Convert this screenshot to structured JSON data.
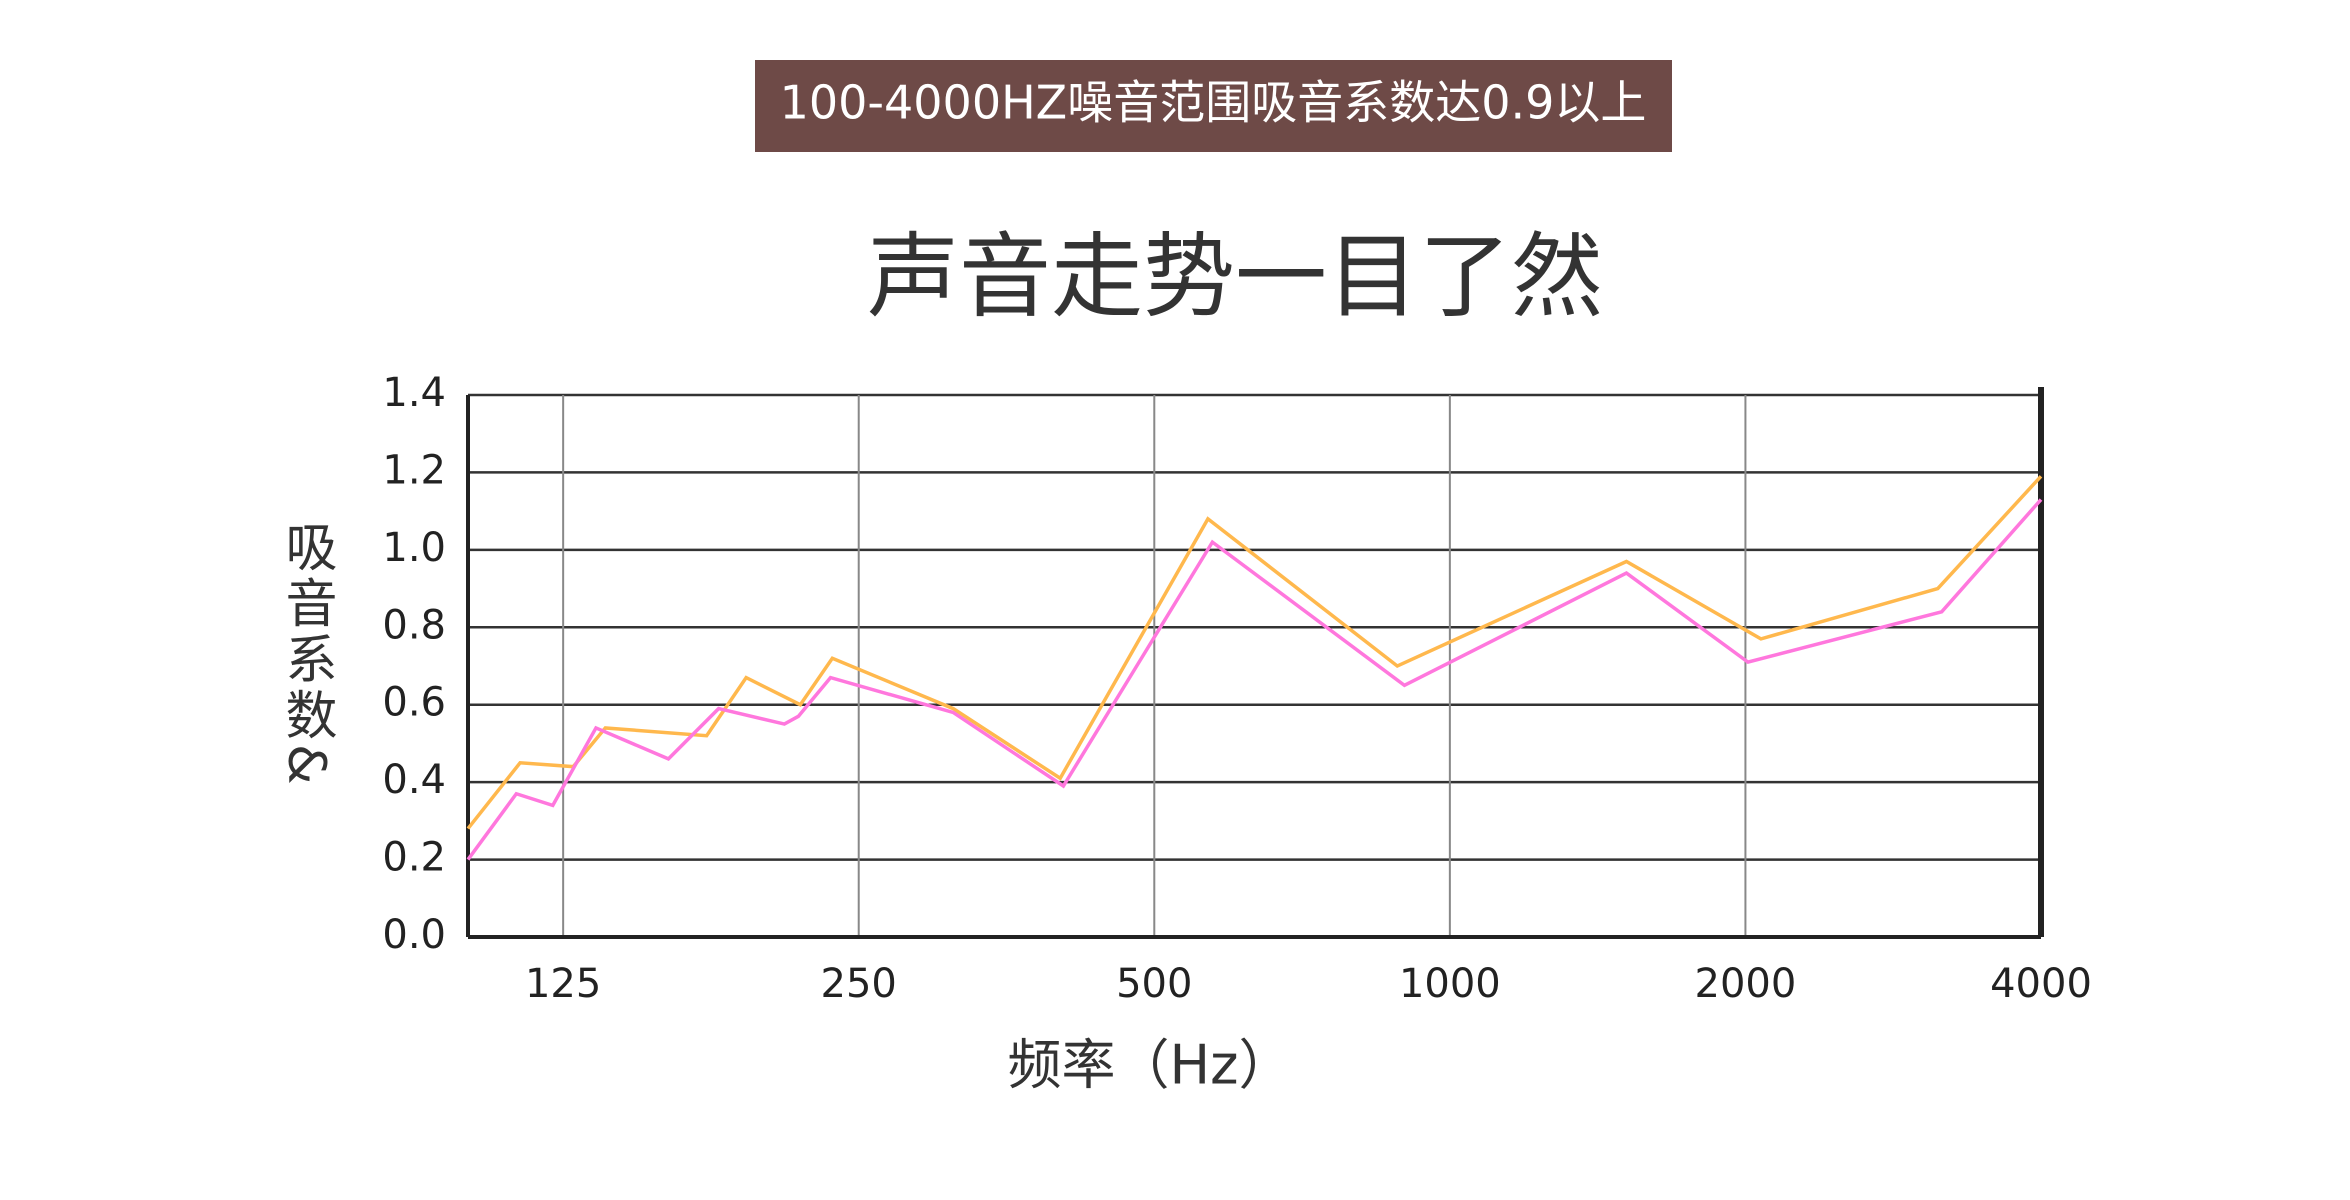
{
  "header": {
    "banner": "100-4000HZ噪音范围吸音系数达0.9以上"
  },
  "chart_data": {
    "type": "line",
    "title": "声音走势一目了然",
    "x_label": "频率（Hz）",
    "y_label": "吸音系数&",
    "xscale": "log",
    "xlim": [
      100,
      4000
    ],
    "xticks": [
      125,
      250,
      500,
      1000,
      2000,
      4000
    ],
    "ylim": [
      0,
      1.4
    ],
    "yticks": [
      {
        "value": 0,
        "label": "0.0"
      },
      0.2,
      0.4,
      0.6,
      0.8,
      {
        "value": 1,
        "label": "1.0"
      },
      1.2,
      1.4
    ],
    "grid": true,
    "series": [
      {
        "color": "#ffb84d",
        "x": [
          100,
          113,
          128,
          138,
          175,
          192,
          218,
          235,
          312,
          401,
          567,
          884,
          1513,
          2074,
          3140,
          4000
        ],
        "values": [
          0.28,
          0.45,
          0.44,
          0.54,
          0.52,
          0.67,
          0.6,
          0.72,
          0.59,
          0.41,
          1.08,
          0.7,
          0.97,
          0.77,
          0.9,
          1.19
        ]
      },
      {
        "color": "#ff77dd",
        "x": [
          100,
          112,
          122,
          135,
          160,
          180,
          210,
          217,
          234,
          312,
          404,
          573,
          899,
          1513,
          2012,
          3169,
          4000
        ],
        "values": [
          0.2,
          0.37,
          0.34,
          0.54,
          0.46,
          0.59,
          0.55,
          0.57,
          0.67,
          0.58,
          0.39,
          1.02,
          0.65,
          0.94,
          0.71,
          0.84,
          1.13
        ]
      }
    ]
  }
}
